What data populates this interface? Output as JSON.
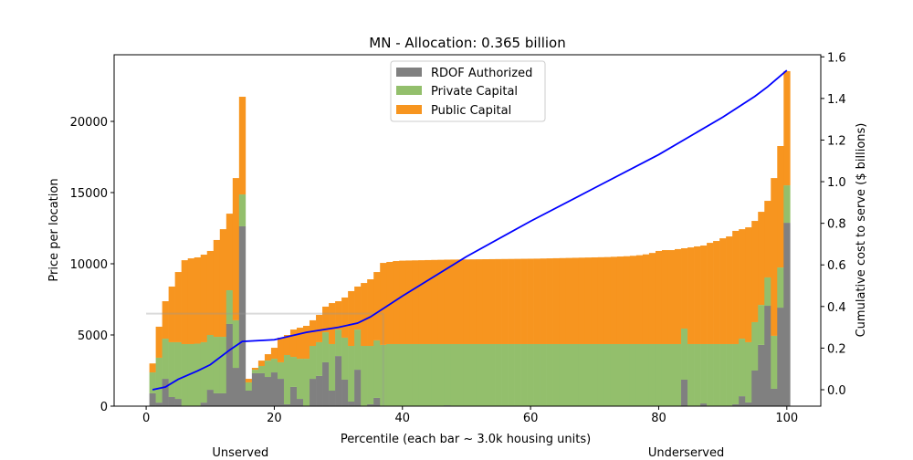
{
  "chart_data": {
    "type": "bar",
    "stacked": true,
    "title": "MN - Allocation: 0.365 billion",
    "xlabel": "Percentile (each bar ~ 3.0k housing units)",
    "ylabel": "Price per location",
    "ylabel_right": "Cumulative cost to serve ($ billions)",
    "xlim": [
      -5,
      105.3
    ],
    "ylim": [
      0,
      24680
    ],
    "ylim_right": [
      -0.079,
      1.61
    ],
    "xticks": [
      0,
      20,
      40,
      60,
      80,
      100
    ],
    "yticks": [
      0,
      5000,
      10000,
      15000,
      20000
    ],
    "yticks_right": [
      "0.0",
      "0.2",
      "0.4",
      "0.6",
      "0.8",
      "1.0",
      "1.2",
      "1.4",
      "1.6"
    ],
    "legend_position": "top-center",
    "annotations": [
      {
        "text": "Unserved",
        "x": 15
      },
      {
        "text": "Underserved",
        "x": 85
      }
    ],
    "reference_lines": {
      "y": 6500,
      "x": 37
    },
    "x": [
      1,
      2,
      3,
      4,
      5,
      6,
      7,
      8,
      9,
      10,
      11,
      12,
      13,
      14,
      15,
      16,
      17,
      18,
      19,
      20,
      21,
      22,
      23,
      24,
      25,
      26,
      27,
      28,
      29,
      30,
      31,
      32,
      33,
      34,
      35,
      36,
      37,
      38,
      39,
      40,
      41,
      42,
      43,
      44,
      45,
      46,
      47,
      48,
      49,
      50,
      51,
      52,
      53,
      54,
      55,
      56,
      57,
      58,
      59,
      60,
      61,
      62,
      63,
      64,
      65,
      66,
      67,
      68,
      69,
      70,
      71,
      72,
      73,
      74,
      75,
      76,
      77,
      78,
      79,
      80,
      81,
      82,
      83,
      84,
      85,
      86,
      87,
      88,
      89,
      90,
      91,
      92,
      93,
      94,
      95,
      96,
      97,
      98,
      99,
      100
    ],
    "series": [
      {
        "name": "RDOF Authorized",
        "color": "#808080",
        "values": [
          900,
          250,
          1920,
          640,
          510,
          0,
          0,
          0,
          250,
          1150,
          900,
          900,
          5770,
          2690,
          12630,
          1090,
          2310,
          2310,
          2050,
          2370,
          1920,
          130,
          1350,
          510,
          0,
          1920,
          2120,
          3080,
          1090,
          3520,
          1860,
          320,
          2560,
          0,
          130,
          580,
          0,
          0,
          0,
          0,
          0,
          0,
          0,
          0,
          0,
          0,
          60,
          0,
          0,
          0,
          0,
          0,
          0,
          0,
          0,
          0,
          0,
          0,
          0,
          0,
          0,
          0,
          0,
          0,
          0,
          0,
          0,
          0,
          0,
          0,
          0,
          0,
          0,
          0,
          0,
          0,
          0,
          0,
          0,
          0,
          0,
          0,
          0,
          1860,
          0,
          0,
          190,
          0,
          0,
          0,
          0,
          130,
          700,
          260,
          2500,
          4300,
          7050,
          1220,
          6920,
          12880
        ]
      },
      {
        "name": "Private Capital",
        "color": "#93bf6c",
        "values": [
          1470,
          3150,
          2820,
          3850,
          3980,
          4360,
          4360,
          4390,
          4240,
          3850,
          3970,
          3970,
          2370,
          3340,
          2240,
          580,
          250,
          510,
          1150,
          960,
          1160,
          3460,
          2110,
          2820,
          3330,
          2310,
          2370,
          2110,
          3270,
          1860,
          2950,
          3910,
          2820,
          4230,
          4100,
          4040,
          4300,
          4360,
          4360,
          4360,
          4360,
          4360,
          4360,
          4360,
          4360,
          4360,
          4300,
          4360,
          4360,
          4360,
          4360,
          4360,
          4360,
          4360,
          4360,
          4360,
          4360,
          4360,
          4360,
          4360,
          4360,
          4360,
          4360,
          4360,
          4360,
          4360,
          4360,
          4360,
          4360,
          4360,
          4360,
          4360,
          4360,
          4360,
          4360,
          4360,
          4360,
          4360,
          4360,
          4360,
          4360,
          4360,
          4360,
          3590,
          4360,
          4360,
          4170,
          4360,
          4360,
          4360,
          4360,
          4230,
          4040,
          4230,
          3400,
          2810,
          1990,
          3720,
          2820,
          2630
        ]
      },
      {
        "name": "Public Capital",
        "color": "#f7951f",
        "values": [
          630,
          2180,
          2630,
          3910,
          4930,
          5890,
          6020,
          6060,
          6150,
          5900,
          6800,
          7560,
          5380,
          9990,
          6860,
          250,
          130,
          380,
          450,
          770,
          1730,
          1410,
          1920,
          2180,
          2310,
          1800,
          1920,
          1800,
          2880,
          1990,
          2820,
          3850,
          3020,
          4420,
          4680,
          4800,
          5760,
          5770,
          5830,
          5860,
          5870,
          5880,
          5890,
          5900,
          5910,
          5920,
          5930,
          5935,
          5940,
          5945,
          5950,
          5955,
          5960,
          5965,
          5970,
          5975,
          5980,
          5985,
          5990,
          5995,
          6000,
          6010,
          6020,
          6030,
          6040,
          6050,
          6060,
          6070,
          6080,
          6090,
          6100,
          6110,
          6130,
          6150,
          6170,
          6200,
          6240,
          6300,
          6400,
          6540,
          6600,
          6600,
          6670,
          5640,
          6790,
          6860,
          6920,
          7110,
          7240,
          7430,
          7560,
          7950,
          7690,
          8070,
          7110,
          6540,
          5380,
          11080,
          8530,
          8020
        ]
      }
    ],
    "line": {
      "name": "Cumulative cost to serve",
      "color": "#0000ff",
      "axis": "right",
      "x": [
        1,
        3,
        5,
        8,
        10,
        13,
        15,
        20,
        25,
        30,
        33,
        35,
        37,
        40,
        50,
        60,
        70,
        80,
        90,
        95,
        97,
        100
      ],
      "y": [
        0.0,
        0.013,
        0.05,
        0.09,
        0.12,
        0.19,
        0.232,
        0.24,
        0.276,
        0.3,
        0.32,
        0.35,
        0.39,
        0.45,
        0.64,
        0.81,
        0.97,
        1.13,
        1.31,
        1.41,
        1.456,
        1.535
      ]
    }
  }
}
